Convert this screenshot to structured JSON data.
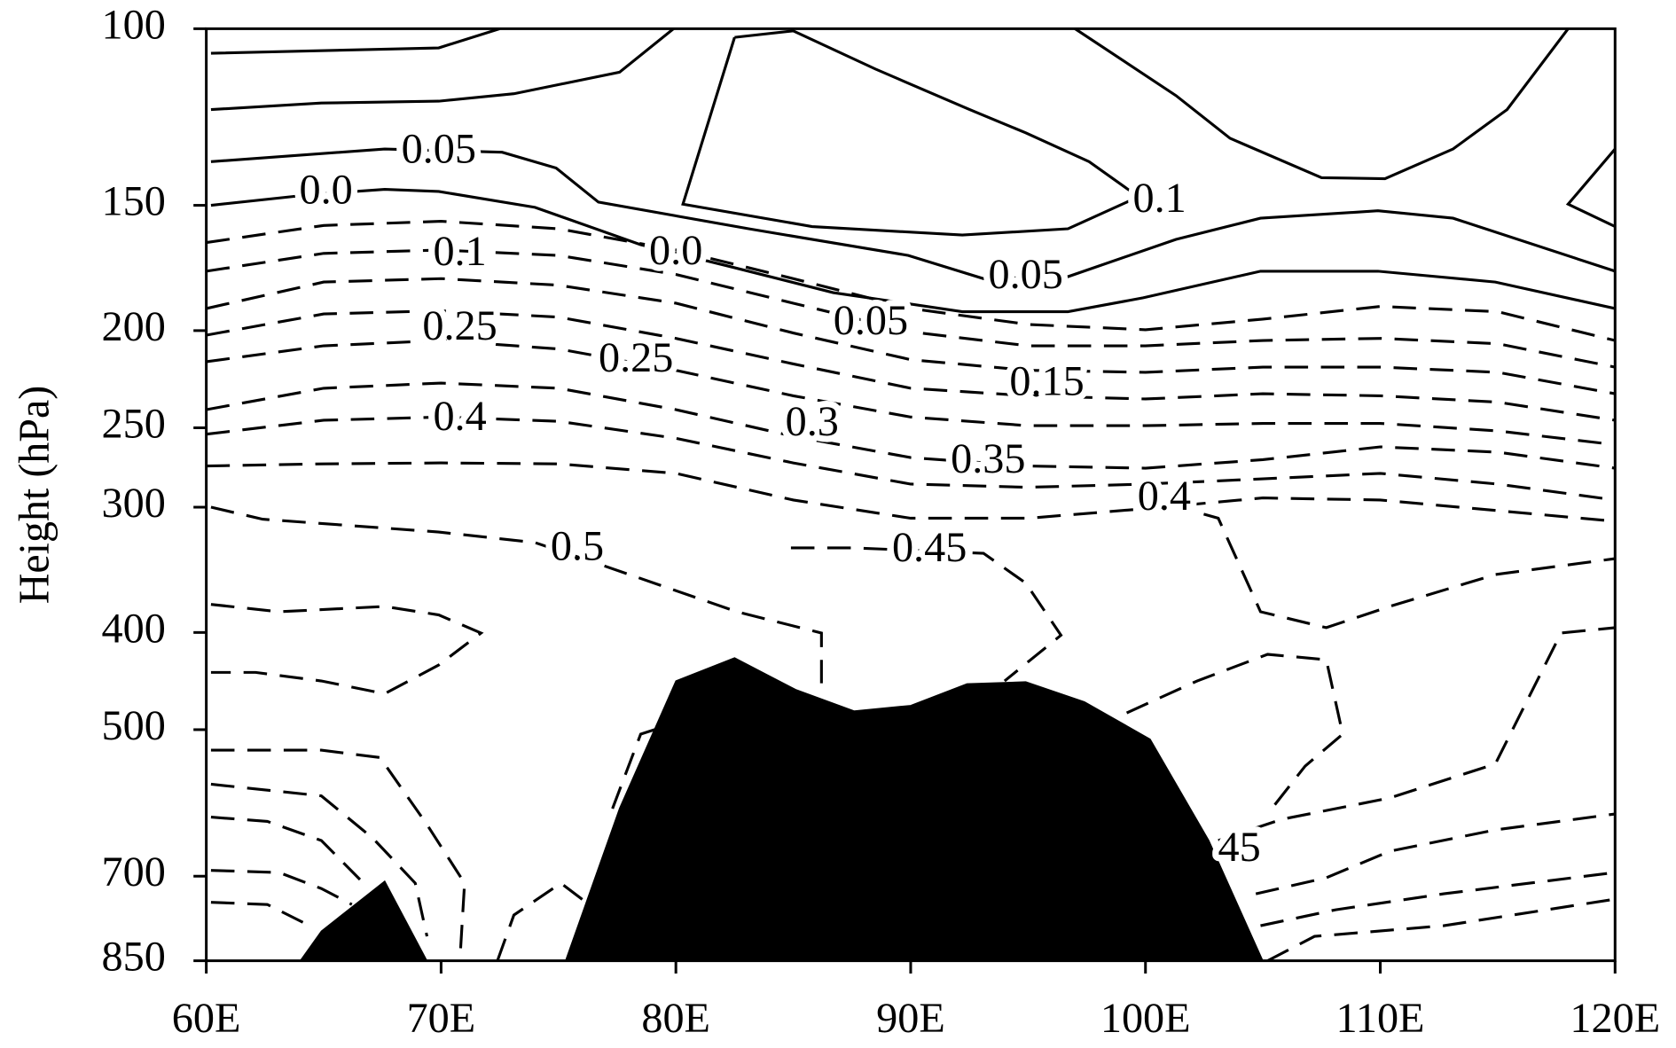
{
  "chart_data": {
    "type": "contour",
    "y_axis_label": "Height (hPa)",
    "xlim": [
      60,
      120
    ],
    "xticks": [
      {
        "value": 60,
        "label": "60E"
      },
      {
        "value": 70,
        "label": "70E"
      },
      {
        "value": 80,
        "label": "80E"
      },
      {
        "value": 90,
        "label": "90E"
      },
      {
        "value": 100,
        "label": "100E"
      },
      {
        "value": 110,
        "label": "110E"
      },
      {
        "value": 120,
        "label": "120E"
      }
    ],
    "ylim": [
      100,
      850
    ],
    "y_log": true,
    "y_inverted": true,
    "yticks": [
      100,
      150,
      200,
      250,
      300,
      400,
      500,
      700,
      850
    ],
    "line_color": "#000000",
    "terrain_color": "#000000",
    "contours": [
      {
        "style": "solid",
        "x": [
          60.2,
          69.9,
          72.5
        ],
        "y": [
          105.8,
          104.5,
          100
        ]
      },
      {
        "style": "solid",
        "x": [
          60.2,
          64.9,
          69.9,
          73.1,
          77.6,
          79.9
        ],
        "y": [
          120.4,
          118.6,
          118.1,
          116.1,
          110.5,
          100
        ]
      },
      {
        "style": "solid",
        "x": [
          60.2,
          67.6,
          72.6,
          74.9,
          76.7,
          83.1,
          89.9,
          93.1,
          96.7,
          101.3,
          104.9,
          109.9,
          113.1,
          120
        ],
        "y": [
          135.7,
          131.8,
          132.8,
          137.7,
          148.9,
          158.3,
          168.3,
          177.5,
          176.7,
          162.2,
          154.5,
          151.9,
          154.5,
          174.5
        ]
      },
      {
        "style": "solid",
        "x": [
          60.2,
          64.4,
          67.6,
          69.9,
          74.0,
          78.5,
          82.2,
          86.7,
          92.2,
          96.7,
          99.9,
          104.9,
          109.9,
          114.9,
          120
        ],
        "y": [
          150,
          146.4,
          144.6,
          145.3,
          150.7,
          164.2,
          172.4,
          183.3,
          191.5,
          191.5,
          185.5,
          174.5,
          174.5,
          178.9,
          190.1
        ]
      },
      {
        "style": "solid",
        "x": [
          82.5,
          85.0,
          88.5,
          92.4,
          94.9,
          97.6,
          99.7,
          96.7,
          92.2,
          85.8,
          80.3,
          82.5
        ],
        "y": [
          102,
          100.5,
          109.7,
          120.1,
          127.0,
          135.7,
          147.1,
          158.3,
          160.6,
          157.5,
          149.6,
          102
        ]
      },
      {
        "style": "solid",
        "x": [
          97.0,
          101.3,
          103.6,
          107.5,
          110.2,
          113.1,
          115.4,
          118.0
        ],
        "y": [
          100,
          116.6,
          128.6,
          140.8,
          141.1,
          131.8,
          120.4,
          100
        ]
      },
      {
        "style": "solid",
        "x": [
          120,
          118.0,
          120
        ],
        "y": [
          131.8,
          149.6,
          157.5
        ]
      },
      {
        "style": "dashed",
        "x": [
          60,
          65,
          70,
          75,
          80,
          85,
          90,
          95,
          100,
          105,
          110,
          115,
          120
        ],
        "y": [
          163.4,
          157.1,
          155.6,
          158.3,
          166.2,
          177.5,
          190.1,
          197.2,
          199.6,
          194.8,
          189.2,
          191.5,
          204.6
        ]
      },
      {
        "style": "dashed",
        "x": [
          60,
          65,
          70,
          75,
          80,
          85,
          90,
          95,
          100,
          105,
          110,
          115,
          120
        ],
        "y": [
          174.5,
          167.5,
          166.2,
          168.3,
          175.8,
          187.8,
          200.6,
          207.1,
          207.1,
          204.6,
          203.6,
          206.1,
          217.5
        ]
      },
      {
        "style": "dashed",
        "x": [
          60,
          65,
          70,
          75,
          80,
          85,
          90,
          95,
          100,
          105,
          110,
          115,
          120
        ],
        "y": [
          190.1,
          178.9,
          177.5,
          180.2,
          187.8,
          201.1,
          213.8,
          219.1,
          220.1,
          217.5,
          217.5,
          220.1,
          231.2
        ]
      },
      {
        "style": "dashed",
        "x": [
          60,
          65,
          70,
          75,
          80,
          85,
          90,
          95,
          100,
          105,
          110,
          115,
          120
        ],
        "y": [
          202.1,
          192.5,
          191.1,
          193.9,
          203.6,
          215.9,
          228.3,
          232.3,
          234.0,
          231.2,
          232.3,
          235.7,
          245.7
        ]
      },
      {
        "style": "dashed",
        "x": [
          60,
          65,
          70,
          75,
          80,
          85,
          90,
          95,
          100,
          105,
          110,
          115,
          120
        ],
        "y": [
          214.8,
          207.1,
          204.6,
          208.6,
          219.1,
          232.3,
          243.9,
          248.8,
          248.8,
          247.5,
          247.5,
          251.8,
          259.9
        ]
      },
      {
        "style": "dashed",
        "x": [
          60,
          65,
          70,
          75,
          80,
          85,
          90,
          95,
          100,
          105,
          110,
          115,
          120
        ],
        "y": [
          239.8,
          228.3,
          225.6,
          228.3,
          239.8,
          254.9,
          267.7,
          272.9,
          274.3,
          269.0,
          261.2,
          264.4,
          274.3
        ]
      },
      {
        "style": "dashed",
        "x": [
          60,
          65,
          70,
          75,
          80,
          85,
          90,
          95,
          100,
          105,
          110,
          115,
          120
        ],
        "y": [
          253.7,
          245.7,
          243.9,
          246.3,
          256.1,
          271.0,
          284.5,
          286.6,
          284.5,
          281.1,
          277.6,
          284.5,
          295.1
        ]
      },
      {
        "style": "dashed",
        "x": [
          60,
          65,
          70,
          75,
          80,
          85,
          90,
          95,
          100,
          105,
          110,
          115,
          120
        ],
        "y": [
          272.9,
          271.6,
          271.0,
          271.6,
          277.6,
          295.1,
          307.7,
          307.7,
          301.0,
          293.7,
          295.1,
          302.4,
          309.9
        ]
      },
      {
        "style": "dashed",
        "x": [
          60.2,
          62.4,
          69.9,
          74.0,
          76.7,
          82.6,
          86.2,
          86.2
        ],
        "y": [
          300,
          308.4,
          317.6,
          325.4,
          341.7,
          381.4,
          400.5,
          455.9
        ]
      },
      {
        "style": "dashed",
        "x": [
          84.9,
          87.6,
          93.1,
          94.9,
          96.4,
          94.0
        ],
        "y": [
          329.4,
          329.4,
          333.5,
          357.1,
          402.5,
          447.1
        ]
      },
      {
        "style": "dashed",
        "x": [
          99.5,
          103.1,
          104.9,
          107.7,
          110.4,
          114.9,
          120
        ],
        "y": [
          291.5,
          307.7,
          381.4,
          395.6,
          376.8,
          350.2,
          337.6
        ]
      },
      {
        "style": "dashed",
        "x": [
          99.2,
          102.2,
          105.2,
          107.7,
          108.4,
          106.8,
          105.2
        ],
        "y": [
          481.1,
          447.1,
          420.6,
          425.8,
          505.2,
          543.6,
          606.8
        ]
      },
      {
        "style": "dashed",
        "x": [
          103.1,
          105.8,
          110.4,
          114.9,
          117.7,
          120
        ],
        "y": [
          645.0,
          614.3,
          584.9,
          540.9,
          400.5,
          395.6
        ]
      },
      {
        "style": "dashed",
        "x": [
          104.7,
          107.7,
          110.4,
          114.9,
          120
        ],
        "y": [
          728.9,
          702.6,
          661.0,
          629.4,
          606.8
        ]
      },
      {
        "style": "dashed",
        "x": [
          104.9,
          108.1,
          112.7,
          120
        ],
        "y": [
          784.3,
          756.1,
          728.9,
          694.1
        ]
      },
      {
        "style": "dashed",
        "x": [
          105.2,
          107.2,
          112.7,
          120
        ],
        "y": [
          850,
          803.7,
          784.3,
          737.9
        ]
      },
      {
        "style": "dashed",
        "x": [
          60.2,
          63.1,
          67.6,
          69.9,
          71.7,
          69.9,
          67.6,
          64.9,
          62.1,
          60.2
        ],
        "y": [
          375.0,
          381.4,
          376.8,
          384.2,
          400.5,
          431.0,
          460.4,
          447.1,
          438.4,
          438.4
        ]
      },
      {
        "style": "dashed",
        "x": [
          60.2,
          64.9,
          67.4,
          69.4,
          71.0,
          70.8
        ],
        "y": [
          524.1,
          524.1,
          533.1,
          621.8,
          711.3,
          850
        ]
      },
      {
        "style": "dashed",
        "x": [
          60.2,
          64.9,
          67.1,
          68.9,
          69.4
        ],
        "y": [
          566.7,
          582.1,
          641.8,
          711.3,
          803.7
        ]
      },
      {
        "style": "dashed",
        "x": [
          60.2,
          62.6,
          64.9,
          66.7
        ],
        "y": [
          611.2,
          617.2,
          645.0,
          711.3
        ]
      },
      {
        "style": "dashed",
        "x": [
          60.2,
          63.1,
          64.9,
          66.2
        ],
        "y": [
          690.7,
          694.1,
          720.1,
          747
        ]
      },
      {
        "style": "dashed",
        "x": [
          60.2,
          62.6,
          64.4
        ],
        "y": [
          743.2,
          747,
          784.3
        ]
      },
      {
        "style": "dashed",
        "x": [
          72.4,
          73.1,
          75.1,
          76.3
        ],
        "y": [
          850,
          765.3,
          711.3,
          747
        ]
      },
      {
        "style": "dashed",
        "x": [
          77.3,
          78.5,
          79.9
        ],
        "y": [
          599.4,
          505.2,
          493
        ]
      }
    ],
    "contour_labels": [
      {
        "text": "0.05",
        "x": 69.9,
        "y": 133
      },
      {
        "text": "0.0",
        "x": 65.1,
        "y": 146
      },
      {
        "text": "0.0",
        "x": 80,
        "y": 168
      },
      {
        "text": "0.05",
        "x": 94.9,
        "y": 177.5
      },
      {
        "text": "0.1",
        "x": 100.6,
        "y": 148.9
      },
      {
        "text": "0.1",
        "x": 70.8,
        "y": 168.3
      },
      {
        "text": "0.25",
        "x": 70.8,
        "y": 199.6
      },
      {
        "text": "0.4",
        "x": 70.8,
        "y": 245.7
      },
      {
        "text": "0.25",
        "x": 78.3,
        "y": 214.8
      },
      {
        "text": "0.05",
        "x": 88.3,
        "y": 197.2
      },
      {
        "text": "0.15",
        "x": 95.8,
        "y": 226.7
      },
      {
        "text": "0.3",
        "x": 85.8,
        "y": 248.8
      },
      {
        "text": "0.35",
        "x": 93.3,
        "y": 271
      },
      {
        "text": "0.4",
        "x": 100.8,
        "y": 295.1
      },
      {
        "text": "0.5",
        "x": 75.8,
        "y": 331
      },
      {
        "text": "0.45",
        "x": 90.8,
        "y": 332
      },
      {
        "text": "45",
        "x": 104.0,
        "y": 661
      }
    ],
    "terrain": [
      {
        "x": [
          64,
          64.9,
          67.6,
          69.4
        ],
        "y": [
          850,
          794,
          708,
          850
        ]
      },
      {
        "x": [
          75.3,
          77.6,
          80.0,
          82.5,
          85.1,
          87.6,
          90.0,
          92.4,
          94.9,
          97.4,
          100.2,
          102.7,
          105.0
        ],
        "y": [
          850,
          599,
          447,
          424,
          456,
          479,
          473,
          450,
          448,
          469,
          511,
          645,
          850
        ]
      }
    ]
  }
}
